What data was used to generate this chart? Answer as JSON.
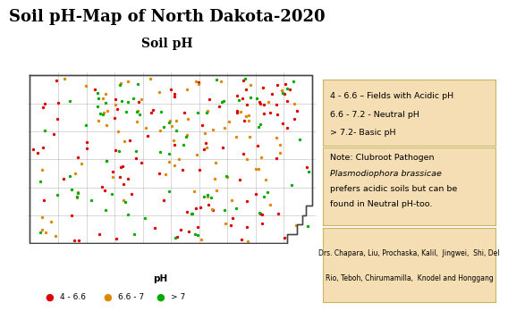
{
  "title": "Soil pH-Map of North Dakota-2020",
  "subtitle": "Soil pH",
  "xlabel": "pH",
  "background_color": "#ffffff",
  "title_fontsize": 13,
  "subtitle_fontsize": 10,
  "legend_labels": [
    "4 - 6.6",
    "6.6 - 7",
    "> 7"
  ],
  "legend_colors": [
    "#dd0000",
    "#dd8800",
    "#00aa00"
  ],
  "box_color": "#f5deb3",
  "box_border": "#c8b560",
  "nd_outline_color": "#555555",
  "county_line_color": "#bbbbbb",
  "dot_size": 6,
  "red_seed": 10,
  "orange_seed": 20,
  "green_seed": 30,
  "red_n": 90,
  "orange_n": 85,
  "green_n": 75,
  "cluster_red_n": 18,
  "cluster_red_lon": [
    -98.6,
    -97.1
  ],
  "cluster_red_lat": [
    48.25,
    48.95
  ]
}
